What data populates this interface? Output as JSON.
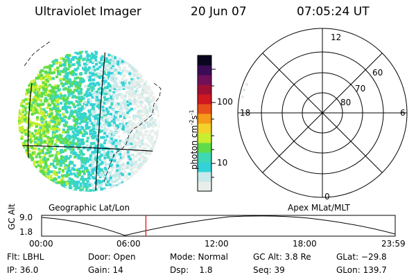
{
  "header": {
    "instrument": "Ultraviolet Imager",
    "date": "20 Jun 07",
    "time": "07:05:24 UT"
  },
  "colorbar": {
    "unit_label": "photon cm",
    "unit_sup1": "-2",
    "unit_mid": "s",
    "unit_sup2": "-1",
    "ticks": [
      "100",
      "10"
    ]
  },
  "left_panel": {
    "caption": "Geographic Lat/Lon"
  },
  "right_panel": {
    "caption": "Apex MLat/MLT",
    "mlt_labels": {
      "top": "12",
      "left": "18",
      "right": "6",
      "bottom": "0"
    },
    "mlat_labels": [
      "60",
      "70",
      "80"
    ]
  },
  "timeline": {
    "ylabel": "GC Alt",
    "y_ticks": [
      "9.0",
      "1.8"
    ],
    "x_ticks": [
      "00:00",
      "06:00",
      "12:00",
      "18:00",
      "23:59"
    ],
    "current_time_fraction": 0.295
  },
  "info": {
    "filter": "Flt: LBHL",
    "ip": "IP: 36.0",
    "door": "Door: Open",
    "gain": "Gain: 14",
    "mode": "Mode: Normal",
    "dsp_label": "Dsp:",
    "dsp_value": "1.8",
    "gc_alt": "GC Alt: 3.8 Re",
    "seq": "Seq: 39",
    "glat": "GLat: −29.8",
    "glon": "GLon: 139.7"
  },
  "colors": {
    "scale": [
      "#e8eeea",
      "#c9e9ea",
      "#32d2d8",
      "#3fd8b4",
      "#5fdc4a",
      "#c8ee2e",
      "#f5d22a",
      "#f59b18",
      "#e8501c",
      "#d01820",
      "#a01035",
      "#70105a",
      "#3b0c55",
      "#0a0620"
    ],
    "marker": "#e00000"
  }
}
